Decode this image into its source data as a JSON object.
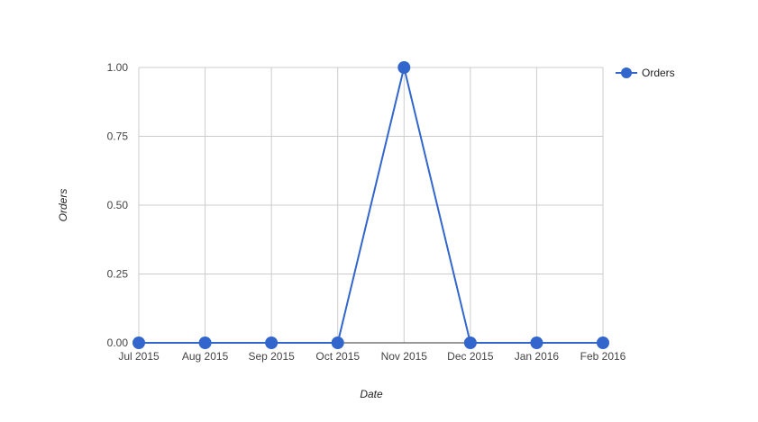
{
  "chart_data": {
    "type": "line",
    "title": "",
    "xlabel": "Date",
    "ylabel": "Orders",
    "x": [
      "Jul 2015",
      "Aug 2015",
      "Sep 2015",
      "Oct 2015",
      "Nov 2015",
      "Dec 2015",
      "Jan 2016",
      "Feb 2016"
    ],
    "y_ticks": [
      "0.00",
      "0.25",
      "0.50",
      "0.75",
      "1.00"
    ],
    "ylim": [
      0,
      1
    ],
    "grid": true,
    "legend_position": "right",
    "series": [
      {
        "name": "Orders",
        "color": "#3366cc",
        "values": [
          0,
          0,
          0,
          0,
          1,
          0,
          0,
          0
        ]
      }
    ]
  }
}
